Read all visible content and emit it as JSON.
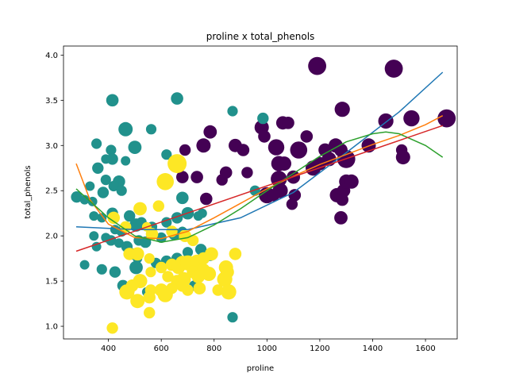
{
  "chart_data": {
    "type": "scatter",
    "title": "proline x total_phenols",
    "xlabel": "proline",
    "ylabel": "total_phenols",
    "xlim": [
      230,
      1720
    ],
    "ylim": [
      0.86,
      4.1
    ],
    "xticks": [
      400,
      600,
      800,
      1000,
      1200,
      1400,
      1600
    ],
    "yticks": [
      1.0,
      1.5,
      2.0,
      2.5,
      3.0,
      3.5,
      4.0
    ],
    "grid": false,
    "legend": "none",
    "colors": {
      "class_0": "#440154",
      "class_1": "#21918c",
      "class_2": "#fde725"
    },
    "series": [
      {
        "class": 0,
        "points": [
          [
            1190,
            3.88,
            1.9
          ],
          [
            1480,
            3.85,
            1.9
          ],
          [
            1285,
            3.4,
            1.6
          ],
          [
            1680,
            3.3,
            1.9
          ],
          [
            1450,
            3.27,
            1.6
          ],
          [
            1547,
            3.3,
            1.7
          ],
          [
            980,
            3.2,
            1.5
          ],
          [
            1060,
            3.25,
            1.4
          ],
          [
            1080,
            3.25,
            1.3
          ],
          [
            1150,
            3.1,
            1.3
          ],
          [
            990,
            3.1,
            1.3
          ],
          [
            785,
            3.15,
            1.4
          ],
          [
            880,
            3.0,
            1.4
          ],
          [
            760,
            3.0,
            1.5
          ],
          [
            910,
            2.95,
            1.3
          ],
          [
            1035,
            2.98,
            1.7
          ],
          [
            1120,
            2.95,
            1.8
          ],
          [
            1220,
            2.95,
            1.4
          ],
          [
            1260,
            3.0,
            1.5
          ],
          [
            1280,
            2.95,
            1.4
          ],
          [
            1385,
            3.0,
            1.5
          ],
          [
            1510,
            2.95,
            1.2
          ],
          [
            1515,
            2.87,
            1.5
          ],
          [
            690,
            2.95,
            1.2
          ],
          [
            735,
            2.65,
            1.3
          ],
          [
            830,
            2.62,
            1.2
          ],
          [
            845,
            2.7,
            1.3
          ],
          [
            925,
            2.7,
            1.2
          ],
          [
            1045,
            2.8,
            1.6
          ],
          [
            1065,
            2.8,
            1.5
          ],
          [
            1100,
            2.65,
            1.4
          ],
          [
            1175,
            2.75,
            1.6
          ],
          [
            1200,
            2.8,
            1.4
          ],
          [
            1235,
            2.85,
            1.5
          ],
          [
            1300,
            2.85,
            1.9
          ],
          [
            1045,
            2.63,
            1.7
          ],
          [
            1050,
            2.5,
            1.6
          ],
          [
            1000,
            2.45,
            1.7
          ],
          [
            1025,
            2.45,
            1.3
          ],
          [
            1105,
            2.45,
            1.3
          ],
          [
            1095,
            2.35,
            1.2
          ],
          [
            1265,
            2.45,
            1.5
          ],
          [
            1290,
            2.5,
            1.4
          ],
          [
            1300,
            2.6,
            1.5
          ],
          [
            1320,
            2.6,
            1.5
          ],
          [
            1285,
            2.4,
            1.3
          ],
          [
            1280,
            2.2,
            1.4
          ],
          [
            770,
            2.41,
            1.3
          ],
          [
            680,
            2.65,
            1.3
          ]
        ]
      },
      {
        "class": 1,
        "points": [
          [
            415,
            3.5,
            1.3
          ],
          [
            660,
            3.52,
            1.3
          ],
          [
            870,
            3.38,
            1.1
          ],
          [
            985,
            3.3,
            1.2
          ],
          [
            465,
            3.18,
            1.5
          ],
          [
            562,
            3.18,
            1.1
          ],
          [
            355,
            3.02,
            1.1
          ],
          [
            410,
            2.95,
            1.1
          ],
          [
            500,
            2.98,
            1.4
          ],
          [
            390,
            2.85,
            1.0
          ],
          [
            415,
            2.85,
            1.2
          ],
          [
            465,
            2.83,
            1.0
          ],
          [
            620,
            2.9,
            1.1
          ],
          [
            360,
            2.75,
            1.2
          ],
          [
            390,
            2.62,
            1.1
          ],
          [
            440,
            2.6,
            1.3
          ],
          [
            420,
            2.55,
            1.1
          ],
          [
            450,
            2.5,
            1.1
          ],
          [
            380,
            2.48,
            1.2
          ],
          [
            330,
            2.55,
            1.0
          ],
          [
            280,
            2.43,
            1.2
          ],
          [
            310,
            2.4,
            1.0
          ],
          [
            340,
            2.38,
            1.0
          ],
          [
            680,
            2.42,
            1.3
          ],
          [
            955,
            2.5,
            1.1
          ],
          [
            415,
            2.25,
            1.2
          ],
          [
            345,
            2.22,
            1.0
          ],
          [
            375,
            2.2,
            1.0
          ],
          [
            480,
            2.22,
            1.2
          ],
          [
            505,
            2.12,
            1.4
          ],
          [
            525,
            2.15,
            1.1
          ],
          [
            620,
            2.15,
            1.1
          ],
          [
            660,
            2.2,
            1.2
          ],
          [
            700,
            2.25,
            1.3
          ],
          [
            740,
            2.22,
            1.0
          ],
          [
            755,
            2.25,
            1.0
          ],
          [
            425,
            2.07,
            1.0
          ],
          [
            450,
            2.05,
            1.1
          ],
          [
            390,
            1.98,
            1.0
          ],
          [
            410,
            1.95,
            1.1
          ],
          [
            345,
            2.0,
            1.0
          ],
          [
            355,
            1.88,
            1.0
          ],
          [
            440,
            1.92,
            1.0
          ],
          [
            470,
            1.88,
            1.2
          ],
          [
            515,
            1.95,
            1.1
          ],
          [
            540,
            1.93,
            1.2
          ],
          [
            600,
            1.98,
            1.1
          ],
          [
            650,
            2.02,
            1.3
          ],
          [
            680,
            2.05,
            1.0
          ],
          [
            565,
            2.1,
            1.1
          ],
          [
            490,
            1.8,
            1.2
          ],
          [
            510,
            1.75,
            1.0
          ],
          [
            580,
            1.7,
            1.1
          ],
          [
            620,
            1.72,
            1.2
          ],
          [
            660,
            1.75,
            1.2
          ],
          [
            700,
            1.82,
            1.1
          ],
          [
            750,
            1.85,
            1.2
          ],
          [
            785,
            1.78,
            1.1
          ],
          [
            310,
            1.68,
            1.0
          ],
          [
            375,
            1.63,
            1.1
          ],
          [
            425,
            1.6,
            1.2
          ],
          [
            505,
            1.65,
            1.4
          ],
          [
            455,
            1.45,
            1.2
          ],
          [
            480,
            1.4,
            1.1
          ],
          [
            545,
            1.38,
            1.0
          ],
          [
            725,
            1.45,
            1.1
          ],
          [
            870,
            1.1,
            1.1
          ]
        ]
      },
      {
        "class": 2,
        "points": [
          [
            660,
            2.8,
            2.0
          ],
          [
            615,
            2.6,
            1.8
          ],
          [
            590,
            2.33,
            1.2
          ],
          [
            420,
            2.2,
            1.3
          ],
          [
            520,
            2.3,
            1.4
          ],
          [
            465,
            2.1,
            1.2
          ],
          [
            545,
            2.1,
            1.0
          ],
          [
            640,
            2.05,
            1.2
          ],
          [
            565,
            2.02,
            1.3
          ],
          [
            690,
            2.0,
            1.3
          ],
          [
            720,
            1.95,
            1.2
          ],
          [
            480,
            1.8,
            1.3
          ],
          [
            510,
            1.8,
            1.4
          ],
          [
            555,
            1.75,
            1.1
          ],
          [
            600,
            1.65,
            1.2
          ],
          [
            640,
            1.68,
            1.3
          ],
          [
            665,
            1.65,
            1.4
          ],
          [
            680,
            1.7,
            1.5
          ],
          [
            700,
            1.7,
            1.6
          ],
          [
            735,
            1.72,
            1.4
          ],
          [
            760,
            1.75,
            1.3
          ],
          [
            790,
            1.8,
            1.4
          ],
          [
            880,
            1.8,
            1.3
          ],
          [
            845,
            1.65,
            1.5
          ],
          [
            850,
            1.6,
            1.4
          ],
          [
            720,
            1.6,
            1.3
          ],
          [
            760,
            1.62,
            1.4
          ],
          [
            560,
            1.6,
            1.1
          ],
          [
            625,
            1.55,
            1.2
          ],
          [
            660,
            1.5,
            1.3
          ],
          [
            685,
            1.52,
            1.5
          ],
          [
            740,
            1.55,
            1.4
          ],
          [
            780,
            1.58,
            1.5
          ],
          [
            840,
            1.52,
            1.6
          ],
          [
            520,
            1.5,
            1.5
          ],
          [
            490,
            1.45,
            1.3
          ],
          [
            560,
            1.4,
            1.2
          ],
          [
            600,
            1.4,
            1.4
          ],
          [
            640,
            1.42,
            1.2
          ],
          [
            700,
            1.4,
            1.2
          ],
          [
            745,
            1.42,
            1.3
          ],
          [
            815,
            1.4,
            1.2
          ],
          [
            470,
            1.38,
            1.6
          ],
          [
            510,
            1.28,
            1.5
          ],
          [
            555,
            1.32,
            1.3
          ],
          [
            615,
            1.35,
            1.6
          ],
          [
            680,
            1.45,
            1.3
          ],
          [
            855,
            1.38,
            1.6
          ],
          [
            555,
            1.15,
            1.2
          ],
          [
            415,
            0.98,
            1.2
          ]
        ]
      }
    ],
    "fit_lines": [
      {
        "color": "#1f77b4",
        "points": [
          [
            278,
            2.1
          ],
          [
            500,
            2.07
          ],
          [
            700,
            2.07
          ],
          [
            900,
            2.2
          ],
          [
            1100,
            2.48
          ],
          [
            1300,
            2.92
          ],
          [
            1500,
            3.37
          ],
          [
            1665,
            3.81
          ]
        ]
      },
      {
        "color": "#ff7f0e",
        "points": [
          [
            278,
            2.8
          ],
          [
            330,
            2.4
          ],
          [
            400,
            2.13
          ],
          [
            500,
            1.98
          ],
          [
            600,
            1.97
          ],
          [
            700,
            2.05
          ],
          [
            800,
            2.2
          ],
          [
            900,
            2.36
          ],
          [
            1000,
            2.52
          ],
          [
            1100,
            2.66
          ],
          [
            1200,
            2.79
          ],
          [
            1300,
            2.9
          ],
          [
            1400,
            3.01
          ],
          [
            1500,
            3.11
          ],
          [
            1600,
            3.23
          ],
          [
            1665,
            3.33
          ]
        ]
      },
      {
        "color": "#2ca02c",
        "points": [
          [
            278,
            2.52
          ],
          [
            400,
            2.2
          ],
          [
            500,
            2.0
          ],
          [
            600,
            1.93
          ],
          [
            700,
            1.98
          ],
          [
            800,
            2.12
          ],
          [
            900,
            2.3
          ],
          [
            1000,
            2.5
          ],
          [
            1100,
            2.69
          ],
          [
            1200,
            2.88
          ],
          [
            1300,
            3.04
          ],
          [
            1400,
            3.13
          ],
          [
            1450,
            3.15
          ],
          [
            1500,
            3.13
          ],
          [
            1600,
            3.0
          ],
          [
            1665,
            2.87
          ]
        ]
      },
      {
        "color": "#d62728",
        "points": [
          [
            278,
            1.83
          ],
          [
            1665,
            3.22
          ]
        ]
      }
    ]
  }
}
